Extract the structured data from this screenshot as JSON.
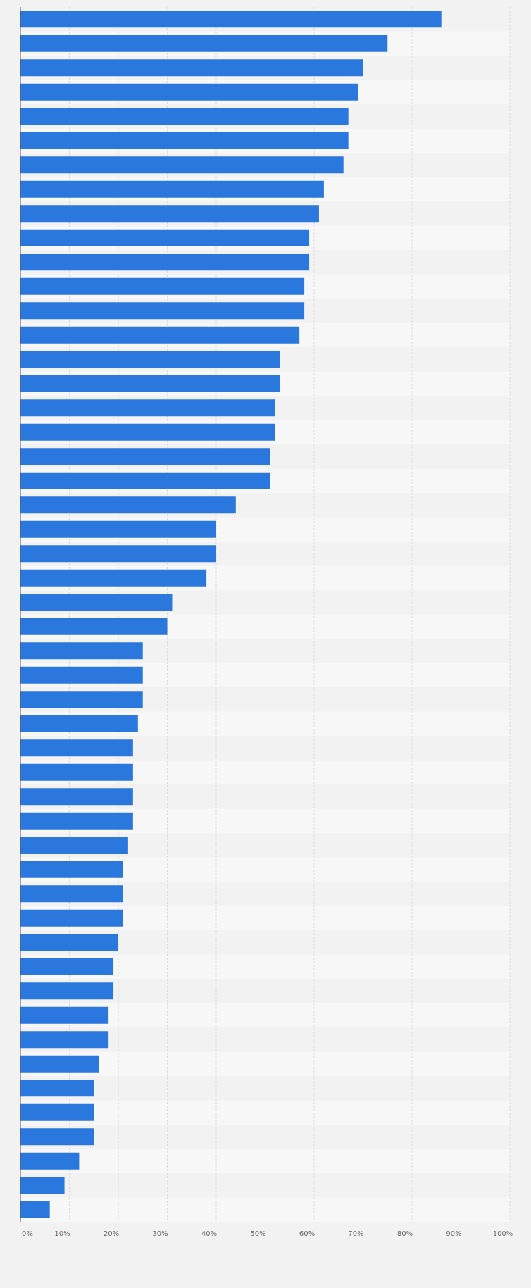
{
  "chart_data": {
    "type": "bar",
    "orientation": "horizontal",
    "title": "",
    "xlabel": "",
    "ylabel": "",
    "xlim": [
      0,
      100
    ],
    "x_ticks": [
      "0%",
      "10%",
      "20%",
      "30%",
      "40%",
      "50%",
      "60%",
      "70%",
      "80%",
      "90%",
      "100%"
    ],
    "grid": true,
    "category_labels_visible": false,
    "values": [
      86,
      75,
      70,
      69,
      67,
      67,
      66,
      62,
      61,
      59,
      59,
      58,
      58,
      57,
      53,
      53,
      52,
      52,
      51,
      51,
      44,
      40,
      40,
      38,
      31,
      30,
      25,
      25,
      25,
      24,
      23,
      23,
      23,
      23,
      22,
      21,
      21,
      21,
      20,
      19,
      19,
      18,
      18,
      16,
      15,
      15,
      15,
      12,
      9,
      6
    ],
    "colors": {
      "bar": "#2a78de",
      "row_even": "#f2f2f2",
      "row_odd": "#f7f7f7",
      "background": "#f2f2f2",
      "grid": "#dddddd",
      "axis": "#555555"
    }
  }
}
